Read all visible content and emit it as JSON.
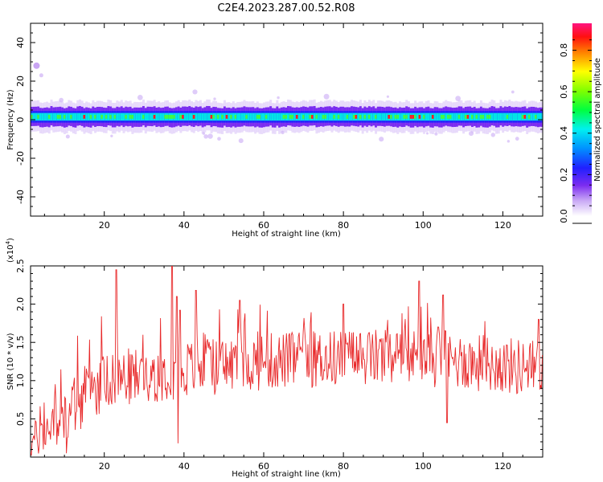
{
  "title": "C2E4.2023.287.00.52.R08",
  "chart_data": [
    {
      "type": "heatmap",
      "xlabel": "Height of straight line (km)",
      "ylabel": "Frequency (Hz)",
      "xlim": [
        1.5,
        130
      ],
      "ylim": [
        -50,
        50
      ],
      "xticks": [
        20,
        40,
        60,
        80,
        100,
        120
      ],
      "yticks": [
        -40,
        -20,
        0,
        20,
        40
      ],
      "ytick_labels": [
        "-40",
        "-20",
        "0",
        "20",
        "40"
      ],
      "band_center_hz": 1.5,
      "band_core_halfwidth_hz": 3,
      "band_halo_halfwidth_hz": 8,
      "blob": {
        "x_km": 3,
        "y_hz": 28
      },
      "colorbar": {
        "label": "Normalized spectral amplitude",
        "range": [
          0,
          0.93
        ],
        "ticks": [
          "0.0",
          "0.2",
          "0.4",
          "0.6",
          "0.8"
        ],
        "tick_values": [
          0,
          0.2,
          0.4,
          0.6,
          0.8
        ]
      }
    },
    {
      "type": "line",
      "xlabel": "Height of straight line (km)",
      "ylabel": "SNR (10 * v/v)",
      "y_scale_label": "(x10",
      "y_scale_exp": "4",
      "y_scale_close": ")",
      "xlim": [
        1.5,
        130
      ],
      "ylim": [
        0,
        2.5
      ],
      "xticks": [
        20,
        40,
        60,
        80,
        100,
        120
      ],
      "yticks": [
        "0.5",
        "1.0",
        "1.5",
        "2.0",
        "2.5"
      ],
      "ytick_values": [
        0.5,
        1.0,
        1.5,
        2.0,
        2.5
      ],
      "series": [
        {
          "color": "#e8292a",
          "x_step_km": 0.2,
          "trend": [
            [
              1.5,
              0.18
            ],
            [
              10,
              0.55
            ],
            [
              20,
              1.0
            ],
            [
              40,
              1.15
            ],
            [
              60,
              1.25
            ],
            [
              80,
              1.3
            ],
            [
              100,
              1.3
            ],
            [
              130,
              1.15
            ]
          ],
          "noise_amplitude": 0.38,
          "peaks": [
            [
              23,
              2.45
            ],
            [
              37,
              2.55
            ],
            [
              38.2,
              2.1
            ],
            [
              39,
              1.92
            ],
            [
              43,
              2.18
            ],
            [
              54,
              2.05
            ],
            [
              80,
              2.0
            ],
            [
              99,
              2.3
            ],
            [
              105,
              2.12
            ],
            [
              129,
              1.8
            ]
          ],
          "dips": [
            [
              38.5,
              0.18
            ],
            [
              10.5,
              0.05
            ],
            [
              106,
              0.45
            ]
          ]
        }
      ]
    }
  ]
}
